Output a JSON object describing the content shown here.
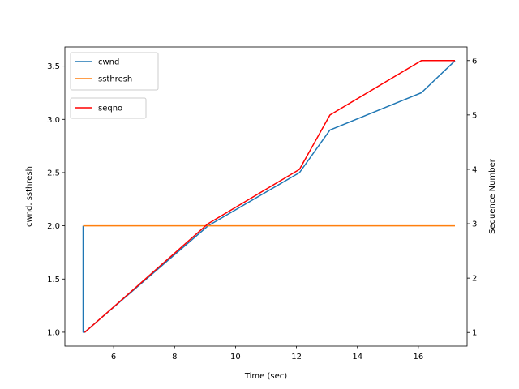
{
  "chart_data": {
    "type": "line",
    "title": "",
    "xlabel": "Time (sec)",
    "ylabel": "cwnd, ssthresh",
    "y2label": "Sequence Number",
    "y2label_color": "#ff0000",
    "xlim": [
      4.4,
      17.6
    ],
    "ylim": [
      0.87,
      3.68
    ],
    "y2lim": [
      0.75,
      6.25
    ],
    "xticks": [
      6,
      8,
      10,
      12,
      14,
      16
    ],
    "yticks": [
      1.0,
      1.5,
      2.0,
      2.5,
      3.0,
      3.5
    ],
    "y2ticks": [
      1,
      2,
      3,
      4,
      5,
      6
    ],
    "grid": false,
    "series": [
      {
        "name": "cwnd",
        "axis": "left",
        "color": "#1f77b4",
        "x": [
          5.0,
          5.0,
          5.05,
          9.1,
          12.1,
          13.1,
          16.1,
          17.2
        ],
        "y": [
          2.0,
          1.0,
          1.0,
          2.0,
          2.5,
          2.9,
          3.25,
          3.55
        ]
      },
      {
        "name": "ssthresh",
        "axis": "left",
        "color": "#ff7f0e",
        "x": [
          5.0,
          17.2
        ],
        "y": [
          2.0,
          2.0
        ]
      },
      {
        "name": "seqno",
        "axis": "right",
        "color": "#ff0000",
        "x": [
          5.05,
          9.1,
          12.1,
          13.1,
          16.1,
          17.2
        ],
        "y": [
          1,
          3,
          4,
          5,
          6,
          6
        ]
      }
    ],
    "legends": [
      {
        "placement": "upper-left",
        "entries": [
          "cwnd",
          "ssthresh"
        ]
      },
      {
        "placement": "upper-left",
        "entries": [
          "seqno"
        ]
      }
    ]
  }
}
